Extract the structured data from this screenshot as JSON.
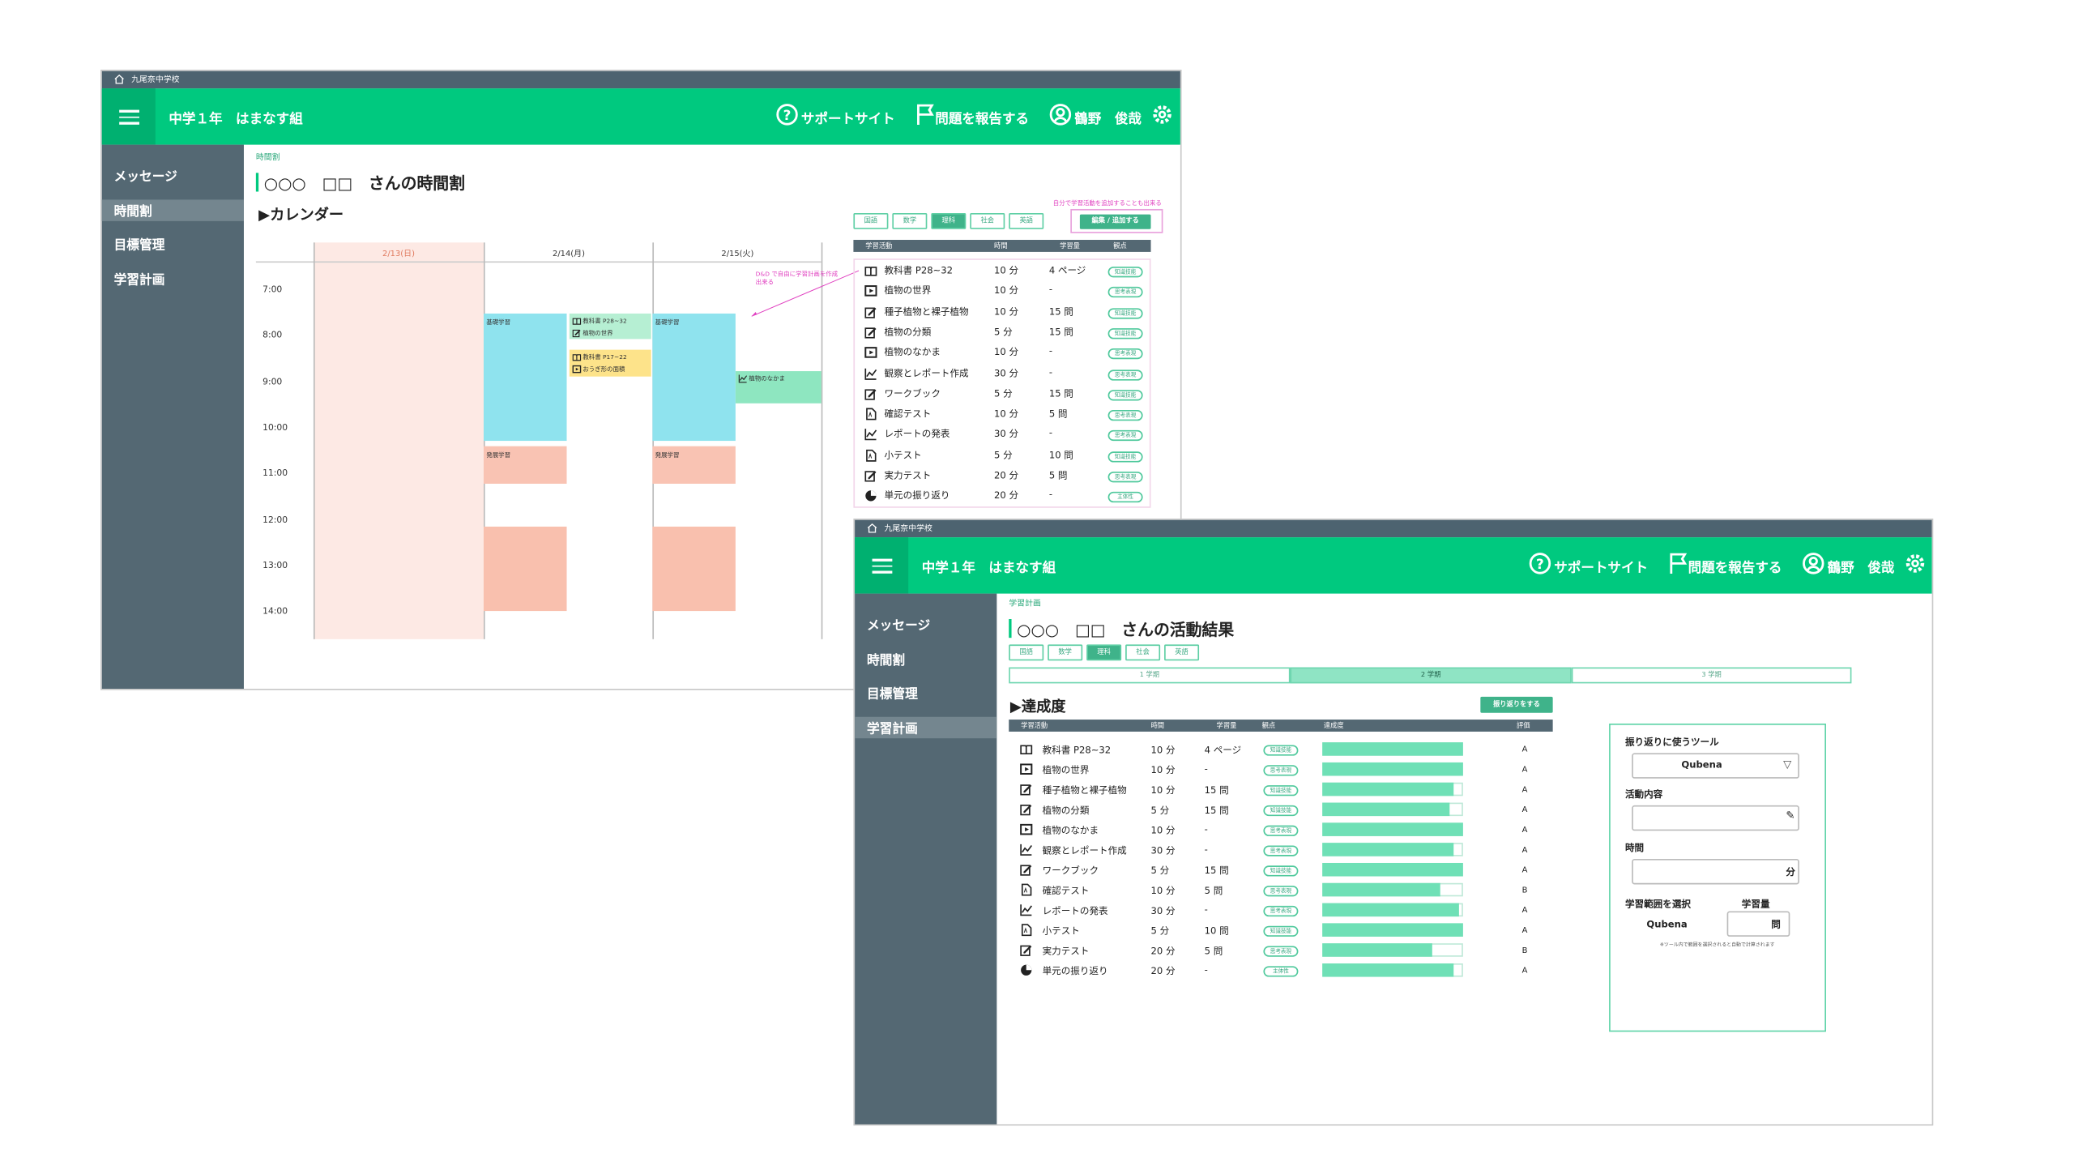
{
  "timetable_window": {
    "school": "九尾奈中学校",
    "class_name": "中学１年　はまなす組",
    "header_links": [
      "サポートサイト",
      "問題を報告する",
      "鶴野　俊哉"
    ],
    "sidebar": [
      "メッセージ",
      "時間割",
      "目標管理",
      "学習計画"
    ],
    "breadcrumb": "時間割",
    "title": "○○○　□□　さんの時間割",
    "section": "▶カレンダー",
    "calendar": {
      "days": [
        "2/13(日)",
        "2/14(月)",
        "2/15(火)"
      ],
      "times": [
        "7:00",
        "8:00",
        "9:00",
        "10:00",
        "11:00",
        "12:00",
        "13:00",
        "14:00"
      ],
      "events": [
        {
          "labels": [
            "基礎学習"
          ]
        },
        {
          "labels": [
            "発展学習"
          ]
        },
        {
          "labels": [
            "基礎学習"
          ]
        },
        {
          "labels": [
            "発展学習"
          ]
        },
        {
          "labels": [
            "教科書 P28~32",
            "植物の世界"
          ]
        },
        {
          "labels": [
            "教科書 P17~22",
            "おうぎ形の面積"
          ]
        },
        {
          "labels": [
            "植物のなかま"
          ]
        }
      ]
    },
    "annotation": "D&D で自由に学習計画を作成出来る",
    "subjects": [
      "国語",
      "数学",
      "理科",
      "社会",
      "英語"
    ],
    "edit_note": "自分で学習活動を追加することも出来る",
    "edit_button": "編集 / 追加する",
    "table_headers": [
      "学習活動",
      "時間",
      "学習量",
      "観点"
    ],
    "activities": [
      {
        "name": "教科書 P28~32",
        "time": "10 分",
        "amount": "4 ページ",
        "viewpoint": "知識技能"
      },
      {
        "name": "植物の世界",
        "time": "10 分",
        "amount": "-",
        "viewpoint": "思考表現"
      },
      {
        "name": "種子植物と裸子植物",
        "time": "10 分",
        "amount": "15 問",
        "viewpoint": "知識技能"
      },
      {
        "name": "植物の分類",
        "time": "5 分",
        "amount": "15 問",
        "viewpoint": "知識技能"
      },
      {
        "name": "植物のなかま",
        "time": "10 分",
        "amount": "-",
        "viewpoint": "思考表現"
      },
      {
        "name": "観察とレポート作成",
        "time": "30 分",
        "amount": "-",
        "viewpoint": "思考表現"
      },
      {
        "name": "ワークブック",
        "time": "5 分",
        "amount": "15 問",
        "viewpoint": "知識技能"
      },
      {
        "name": "確認テスト",
        "time": "10 分",
        "amount": "5 問",
        "viewpoint": "思考表現"
      },
      {
        "name": "レポートの発表",
        "time": "30 分",
        "amount": "-",
        "viewpoint": "思考表現"
      },
      {
        "name": "小テスト",
        "time": "5 分",
        "amount": "10 問",
        "viewpoint": "知識技能"
      },
      {
        "name": "実力テスト",
        "time": "20 分",
        "amount": "5 問",
        "viewpoint": "思考表現"
      },
      {
        "name": "単元の振り返り",
        "time": "20 分",
        "amount": "-",
        "viewpoint": "主体性"
      }
    ]
  },
  "results_window": {
    "school": "九尾奈中学校",
    "class_name": "中学１年　はまなす組",
    "header_links": [
      "サポートサイト",
      "問題を報告する",
      "鶴野　俊哉"
    ],
    "sidebar": [
      "メッセージ",
      "時間割",
      "目標管理",
      "学習計画"
    ],
    "breadcrumb": "学習計画",
    "title": "○○○　□□　さんの活動結果",
    "subjects": [
      "国語",
      "数学",
      "理科",
      "社会",
      "英語"
    ],
    "terms": [
      "1 学期",
      "2 学期",
      "3 学期"
    ],
    "section": "▶達成度",
    "reflect_button": "振り返りをする",
    "table_headers": [
      "学習活動",
      "時間",
      "学習量",
      "観点",
      "達成度",
      "評価"
    ],
    "activities": [
      {
        "name": "教科書 P28~32",
        "time": "10 分",
        "amount": "4 ページ",
        "viewpoint": "知識技能",
        "achievement": 1.0,
        "grade": "A"
      },
      {
        "name": "植物の世界",
        "time": "10 分",
        "amount": "-",
        "viewpoint": "思考表現",
        "achievement": 1.0,
        "grade": "A"
      },
      {
        "name": "種子植物と裸子植物",
        "time": "10 分",
        "amount": "15 問",
        "viewpoint": "知識技能",
        "achievement": 0.93,
        "grade": "A"
      },
      {
        "name": "植物の分類",
        "time": "5 分",
        "amount": "15 問",
        "viewpoint": "知識技能",
        "achievement": 0.9,
        "grade": "A"
      },
      {
        "name": "植物のなかま",
        "time": "10 分",
        "amount": "-",
        "viewpoint": "思考表現",
        "achievement": 1.0,
        "grade": "A"
      },
      {
        "name": "観察とレポート作成",
        "time": "30 分",
        "amount": "-",
        "viewpoint": "思考表現",
        "achievement": 0.93,
        "grade": "A"
      },
      {
        "name": "ワークブック",
        "time": "5 分",
        "amount": "15 問",
        "viewpoint": "知識技能",
        "achievement": 1.0,
        "grade": "A"
      },
      {
        "name": "確認テスト",
        "time": "10 分",
        "amount": "5 問",
        "viewpoint": "思考表現",
        "achievement": 0.84,
        "grade": "B"
      },
      {
        "name": "レポートの発表",
        "time": "30 分",
        "amount": "-",
        "viewpoint": "思考表現",
        "achievement": 0.97,
        "grade": "A"
      },
      {
        "name": "小テスト",
        "time": "5 分",
        "amount": "10 問",
        "viewpoint": "知識技能",
        "achievement": 1.0,
        "grade": "A"
      },
      {
        "name": "実力テスト",
        "time": "20 分",
        "amount": "5 問",
        "viewpoint": "思考表現",
        "achievement": 0.78,
        "grade": "B"
      },
      {
        "name": "単元の振り返り",
        "time": "20 分",
        "amount": "-",
        "viewpoint": "主体性",
        "achievement": 0.93,
        "grade": "A"
      }
    ],
    "form": {
      "tool_label": "振り返りに使うツール",
      "tool": "Qubena",
      "content_label": "活動内容",
      "time_label": "時間",
      "time_unit": "分",
      "range_label": "学習範囲を選択",
      "amount_label": "学習量",
      "range_tool": "Qubena",
      "amount_unit": "問",
      "note": "※ツール内で範囲を選択されると自動で計算されます"
    }
  }
}
